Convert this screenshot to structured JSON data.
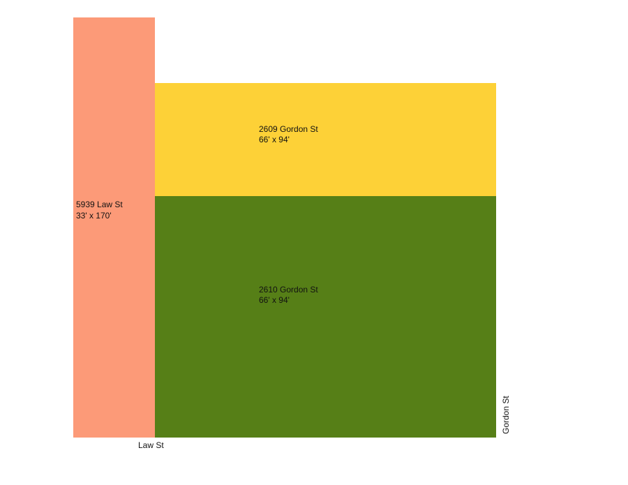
{
  "parcels": [
    {
      "address": "5939 Law St",
      "dimensions": "33' x 170'"
    },
    {
      "address": "2609 Gordon St",
      "dimensions": "66' x 94'"
    },
    {
      "address": "2610 Gordon St",
      "dimensions": "66' x 94'"
    }
  ],
  "streets": {
    "bottom": "Law St",
    "right": "Gordon St"
  }
}
